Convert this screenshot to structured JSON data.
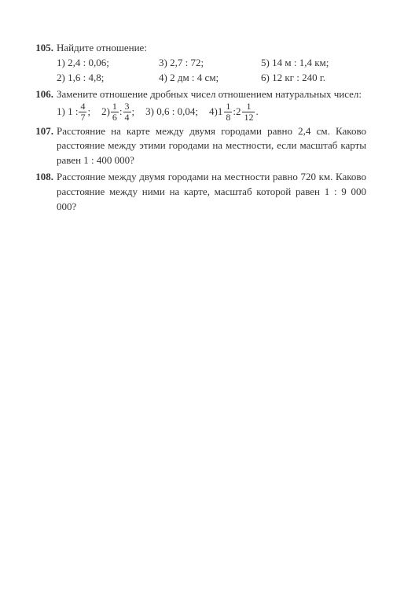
{
  "problems": {
    "p105": {
      "num": "105.",
      "title": "Найдите отношение:",
      "items": {
        "i1": "1) 2,4 : 0,06;",
        "i2": "2) 1,6 : 4,8;",
        "i3": "3) 2,7 : 72;",
        "i4": "4) 2 дм : 4 см;",
        "i5": "5) 14 м : 1,4 км;",
        "i6": "6) 12 кг : 240 г."
      }
    },
    "p106": {
      "num": "106.",
      "title": "Замените отношение дробных чисел отношением натуральных чисел:",
      "items": {
        "i1_pre": "1) 1 : ",
        "f1_n": "4",
        "f1_d": "7",
        "i1_post": ";",
        "i2_pre": "2) ",
        "f2a_n": "1",
        "f2a_d": "6",
        "i2_mid": " : ",
        "f2b_n": "3",
        "f2b_d": "4",
        "i2_post": ";",
        "i3": "3) 0,6 : 0,04;",
        "i4_pre": "4) ",
        "m4a_w": "1",
        "m4a_n": "1",
        "m4a_d": "8",
        "i4_mid": " : ",
        "m4b_w": "2",
        "m4b_n": "1",
        "m4b_d": "12",
        "i4_post": " ."
      }
    },
    "p107": {
      "num": "107.",
      "text": "Расстояние на карте между двумя городами равно 2,4 см. Каково расстояние между этими городами на местности, если масштаб карты равен 1 : 400 000?"
    },
    "p108": {
      "num": "108.",
      "text": "Расстояние между двумя городами на местности равно 720 км. Каково расстояние между ними на карте, масштаб которой равен 1 : 9 000 000?"
    }
  }
}
